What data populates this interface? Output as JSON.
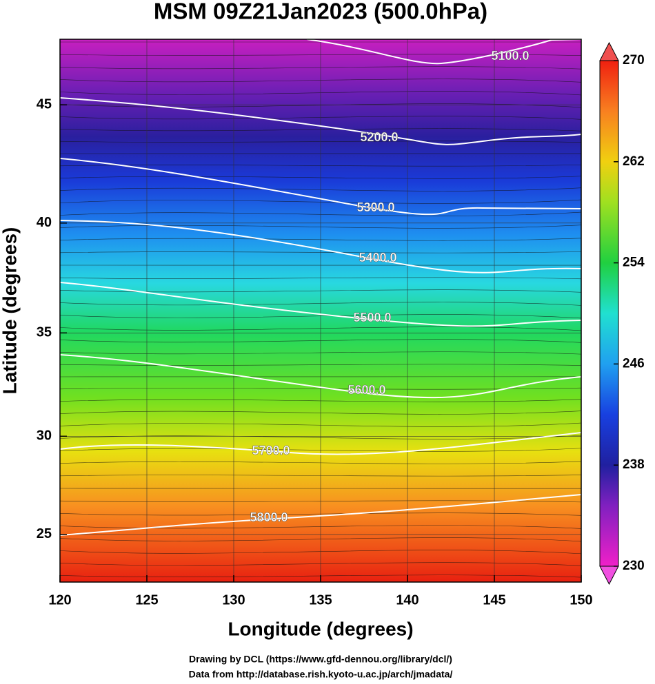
{
  "map": {
    "title": "MSM 09Z21Jan2023 (500.0hPa)",
    "xlabel": "Longitude (degrees)",
    "ylabel": "Latitude  (degrees)",
    "xlim": [
      120,
      150
    ],
    "ylim": [
      22.5,
      47.6
    ],
    "xticks": [
      120,
      125,
      130,
      135,
      140,
      145,
      150
    ],
    "yticks": [
      25,
      30,
      35,
      40,
      45
    ],
    "grid": true,
    "colorbar": {
      "lim": [
        230,
        270
      ],
      "ticks": [
        230,
        238,
        246,
        254,
        262,
        270
      ]
    },
    "contour_labels": [
      "5100.0",
      "5200.0",
      "5300.0",
      "5400.0",
      "5500.0",
      "5600.0",
      "5700.0",
      "5800.0"
    ],
    "footer": [
      "Drawing by DCL (https://www.gfd-dennou.org/library/dcl/)",
      "Data from http://database.rish.kyoto-u.ac.jp/arch/jmadata/"
    ]
  }
}
